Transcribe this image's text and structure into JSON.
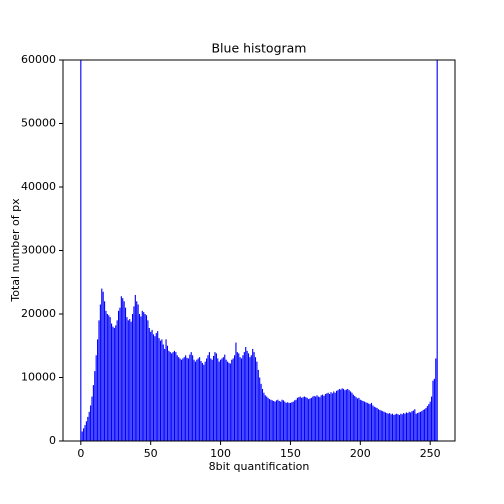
{
  "chart_data": {
    "type": "bar",
    "title": "Blue histogram",
    "x_label": "8bit quantification",
    "y_label": "Total number of px",
    "color": "#0000ff",
    "x": [
      0,
      1,
      2,
      3,
      4,
      5,
      6,
      7,
      8,
      9,
      10,
      11,
      12,
      13,
      14,
      15,
      16,
      17,
      18,
      19,
      20,
      21,
      22,
      23,
      24,
      25,
      26,
      27,
      28,
      29,
      30,
      31,
      32,
      33,
      34,
      35,
      36,
      37,
      38,
      39,
      40,
      41,
      42,
      43,
      44,
      45,
      46,
      47,
      48,
      49,
      50,
      51,
      52,
      53,
      54,
      55,
      56,
      57,
      58,
      59,
      60,
      61,
      62,
      63,
      64,
      65,
      66,
      67,
      68,
      69,
      70,
      71,
      72,
      73,
      74,
      75,
      76,
      77,
      78,
      79,
      80,
      81,
      82,
      83,
      84,
      85,
      86,
      87,
      88,
      89,
      90,
      91,
      92,
      93,
      94,
      95,
      96,
      97,
      98,
      99,
      100,
      101,
      102,
      103,
      104,
      105,
      106,
      107,
      108,
      109,
      110,
      111,
      112,
      113,
      114,
      115,
      116,
      117,
      118,
      119,
      120,
      121,
      122,
      123,
      124,
      125,
      126,
      127,
      128,
      129,
      130,
      131,
      132,
      133,
      134,
      135,
      136,
      137,
      138,
      139,
      140,
      141,
      142,
      143,
      144,
      145,
      146,
      147,
      148,
      149,
      150,
      151,
      152,
      153,
      154,
      155,
      156,
      157,
      158,
      159,
      160,
      161,
      162,
      163,
      164,
      165,
      166,
      167,
      168,
      169,
      170,
      171,
      172,
      173,
      174,
      175,
      176,
      177,
      178,
      179,
      180,
      181,
      182,
      183,
      184,
      185,
      186,
      187,
      188,
      189,
      190,
      191,
      192,
      193,
      194,
      195,
      196,
      197,
      198,
      199,
      200,
      201,
      202,
      203,
      204,
      205,
      206,
      207,
      208,
      209,
      210,
      211,
      212,
      213,
      214,
      215,
      216,
      217,
      218,
      219,
      220,
      221,
      222,
      223,
      224,
      225,
      226,
      227,
      228,
      229,
      230,
      231,
      232,
      233,
      234,
      235,
      236,
      237,
      238,
      239,
      240,
      241,
      242,
      243,
      244,
      245,
      246,
      247,
      248,
      249,
      250,
      251,
      252,
      253,
      254,
      255
    ],
    "values": [
      65000,
      1500,
      2000,
      2500,
      3100,
      3800,
      4600,
      5600,
      7000,
      8800,
      11000,
      13500,
      16000,
      19000,
      21500,
      24000,
      23500,
      22000,
      20500,
      20000,
      19800,
      19500,
      18500,
      18000,
      17800,
      18200,
      19000,
      20500,
      21000,
      22800,
      22500,
      22000,
      21000,
      19500,
      19000,
      19200,
      18800,
      20000,
      21200,
      23000,
      22000,
      21500,
      20000,
      19600,
      20500,
      20300,
      20000,
      19800,
      19000,
      17800,
      17200,
      17500,
      16800,
      16500,
      17000,
      17300,
      16200,
      15800,
      16000,
      15200,
      14500,
      16000,
      15000,
      14200,
      14000,
      13800,
      14000,
      14200,
      14000,
      13500,
      13200,
      13000,
      12800,
      13000,
      13200,
      13500,
      13100,
      13000,
      13600,
      14000,
      13500,
      12800,
      12500,
      12800,
      13000,
      13200,
      12600,
      12300,
      12000,
      12500,
      13000,
      13500,
      14000,
      13000,
      12800,
      13400,
      14000,
      13800,
      13000,
      12500,
      12800,
      13000,
      13200,
      13600,
      12800,
      12500,
      12300,
      12200,
      12800,
      13000,
      13500,
      15500,
      14000,
      13800,
      13200,
      13000,
      13500,
      14000,
      14800,
      14200,
      13800,
      13200,
      13500,
      14500,
      14000,
      13200,
      12500,
      11200,
      10000,
      9000,
      8200,
      7600,
      7200,
      7000,
      6800,
      6600,
      6500,
      6400,
      6300,
      6200,
      6400,
      6500,
      6300,
      6200,
      6500,
      6400,
      6200,
      6000,
      6100,
      6000,
      6000,
      6100,
      6200,
      6400,
      6500,
      6800,
      6900,
      7000,
      6800,
      6900,
      7000,
      6900,
      6800,
      6600,
      6700,
      6800,
      7000,
      7100,
      7000,
      7200,
      7000,
      6900,
      7200,
      7300,
      7100,
      7400,
      7500,
      7600,
      7400,
      7700,
      7500,
      7800,
      7600,
      7900,
      8000,
      8200,
      8100,
      8300,
      8200,
      8000,
      8100,
      8200,
      8000,
      7800,
      7600,
      7300,
      7100,
      6900,
      6700,
      6800,
      6500,
      6400,
      6300,
      6200,
      6100,
      6000,
      5900,
      5800,
      6000,
      5600,
      5400,
      5300,
      5200,
      5000,
      4900,
      4800,
      4700,
      4600,
      4500,
      4400,
      4300,
      4400,
      4200,
      4300,
      4100,
      4200,
      4300,
      4200,
      4100,
      4300,
      4200,
      4400,
      4300,
      4500,
      4400,
      4600,
      4500,
      4700,
      4800,
      5000,
      4300,
      4400,
      4500,
      4600,
      4700,
      4900,
      5000,
      5200,
      5500,
      5800,
      6200,
      7000,
      9500,
      9800,
      13000,
      65000
    ],
    "xlim": [
      -12.75,
      267.75
    ],
    "xticks": [
      0,
      50,
      100,
      150,
      200,
      250
    ],
    "ylim": [
      0,
      60000
    ],
    "yticks": [
      0,
      10000,
      20000,
      30000,
      40000,
      50000,
      60000
    ]
  }
}
